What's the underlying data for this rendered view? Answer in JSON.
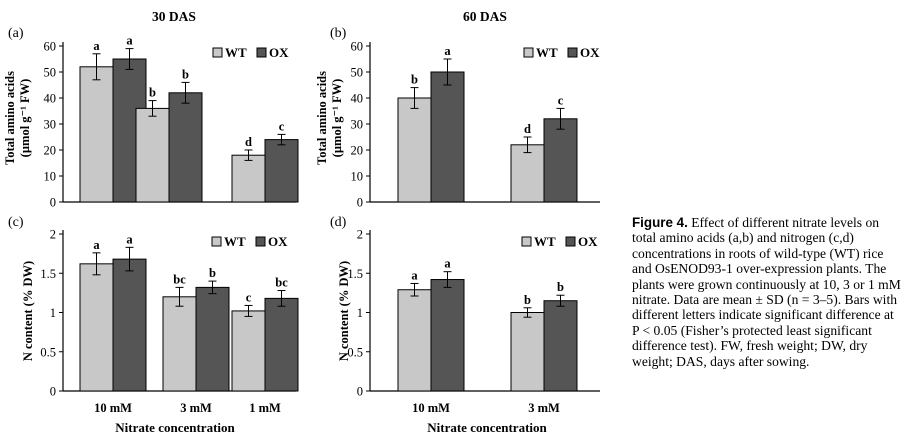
{
  "figure": {
    "caption_label": "Figure 4.",
    "caption_text": "Effect of different nitrate levels on total amino acids (a,b) and nitrogen (c,d) concentrations in roots of wild-type (WT) rice and OsENOD93-1 over-expression plants. The plants were grown continuously at 10, 3 or 1 mM nitrate. Data are mean ± SD (n = 3–5). Bars with different letters indicate significant difference at P < 0.05 (Fisher’s protected least significant difference test). FW, fresh weight; DW, dry weight; DAS, days after sowing.",
    "column_titles": [
      "30 DAS",
      "60 DAS"
    ]
  },
  "colors": {
    "wt": "#c8c8c8",
    "ox": "#555555"
  },
  "chart_data": [
    {
      "panel": "(a)",
      "type": "bar",
      "categories": [
        "10 mM",
        "3 mM",
        "1 mM"
      ],
      "series": [
        {
          "name": "WT",
          "values": [
            52,
            36,
            18
          ],
          "errors": [
            5,
            3,
            2
          ],
          "letters": [
            "a",
            "b",
            "d"
          ]
        },
        {
          "name": "OX",
          "values": [
            55,
            42,
            24
          ],
          "errors": [
            4,
            4,
            2
          ],
          "letters": [
            "a",
            "b",
            "c"
          ]
        }
      ],
      "ylabel": "Total amino acids (µmol g⁻¹ FW)",
      "ylim": [
        0,
        60
      ],
      "yticks": [
        "0",
        "10",
        "20",
        "30",
        "40",
        "50",
        "60"
      ],
      "xlabel": "",
      "legend": "top-right"
    },
    {
      "panel": "(b)",
      "type": "bar",
      "categories": [
        "10 mM",
        "3 mM"
      ],
      "series": [
        {
          "name": "WT",
          "values": [
            40,
            22
          ],
          "errors": [
            4,
            3
          ],
          "letters": [
            "b",
            "d"
          ]
        },
        {
          "name": "OX",
          "values": [
            50,
            32
          ],
          "errors": [
            5,
            4
          ],
          "letters": [
            "a",
            "c"
          ]
        }
      ],
      "ylabel": "Total amino acids (µmol g⁻¹ FW)",
      "ylim": [
        0,
        60
      ],
      "yticks": [
        "0",
        "10",
        "20",
        "30",
        "40",
        "50",
        "60"
      ],
      "xlabel": "",
      "legend": "top-right"
    },
    {
      "panel": "(c)",
      "type": "bar",
      "categories": [
        "10 mM",
        "3 mM",
        "1 mM"
      ],
      "series": [
        {
          "name": "WT",
          "values": [
            1.62,
            1.2,
            1.02
          ],
          "errors": [
            0.14,
            0.12,
            0.07
          ],
          "letters": [
            "a",
            "bc",
            "c"
          ]
        },
        {
          "name": "OX",
          "values": [
            1.68,
            1.32,
            1.18
          ],
          "errors": [
            0.15,
            0.08,
            0.1
          ],
          "letters": [
            "a",
            "b",
            "bc"
          ]
        }
      ],
      "ylabel": "N content (% DW)",
      "ylim": [
        0,
        2
      ],
      "yticks": [
        "0",
        "0.5",
        "1",
        "1.5",
        "2"
      ],
      "xlabel": "Nitrate concentration",
      "legend": "top-right"
    },
    {
      "panel": "(d)",
      "type": "bar",
      "categories": [
        "10 mM",
        "3 mM"
      ],
      "series": [
        {
          "name": "WT",
          "values": [
            1.29,
            1.0
          ],
          "errors": [
            0.08,
            0.06
          ],
          "letters": [
            "a",
            "b"
          ]
        },
        {
          "name": "OX",
          "values": [
            1.42,
            1.15
          ],
          "errors": [
            0.1,
            0.07
          ],
          "letters": [
            "a",
            "b"
          ]
        }
      ],
      "ylabel": "N content (% DW)",
      "ylim": [
        0,
        2
      ],
      "yticks": [
        "0",
        "0.5",
        "1",
        "1.5",
        "2"
      ],
      "xlabel": "Nitrate concentration",
      "legend": "top-right"
    }
  ]
}
